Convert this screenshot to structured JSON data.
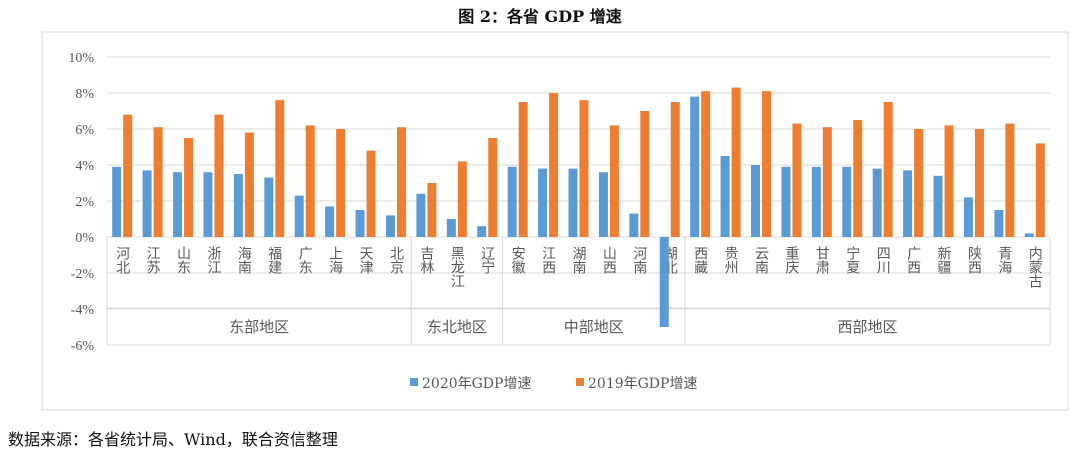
{
  "chart_data": {
    "type": "bar",
    "title": "图 2：各省 GDP 增速",
    "source": "数据来源：各省统计局、Wind，联合资信整理",
    "ylim": [
      -6,
      10
    ],
    "yticks": [
      "-6%",
      "-4%",
      "-2%",
      "0%",
      "2%",
      "4%",
      "6%",
      "8%",
      "10%"
    ],
    "grid": true,
    "legend": "bottom",
    "groups": [
      {
        "name": "东部地区",
        "categories": [
          "河北",
          "江苏",
          "山东",
          "浙江",
          "海南",
          "福建",
          "广东",
          "上海",
          "天津",
          "北京"
        ]
      },
      {
        "name": "东北地区",
        "categories": [
          "吉林",
          "黑龙江",
          "辽宁"
        ]
      },
      {
        "name": "中部地区",
        "categories": [
          "安徽",
          "江西",
          "湖南",
          "山西",
          "河南",
          "湖北"
        ]
      },
      {
        "name": "西部地区",
        "categories": [
          "西藏",
          "贵州",
          "云南",
          "重庆",
          "甘肃",
          "宁夏",
          "四川",
          "广西",
          "新疆",
          "陕西",
          "青海",
          "内蒙古"
        ]
      }
    ],
    "series": [
      {
        "name": "2020年GDP增速",
        "color": "#5b9bd5",
        "values": [
          3.9,
          3.7,
          3.6,
          3.6,
          3.5,
          3.3,
          2.3,
          1.7,
          1.5,
          1.2,
          2.4,
          1.0,
          0.6,
          3.9,
          3.8,
          3.8,
          3.6,
          1.3,
          -5.0,
          7.8,
          4.5,
          4.0,
          3.9,
          3.9,
          3.9,
          3.8,
          3.7,
          3.4,
          2.2,
          1.5,
          0.2
        ]
      },
      {
        "name": "2019年GDP增速",
        "color": "#ed7d31",
        "values": [
          6.8,
          6.1,
          5.5,
          6.8,
          5.8,
          7.6,
          6.2,
          6.0,
          4.8,
          6.1,
          3.0,
          4.2,
          5.5,
          7.5,
          8.0,
          7.6,
          6.2,
          7.0,
          7.5,
          8.1,
          8.3,
          8.1,
          6.3,
          6.1,
          6.5,
          7.5,
          6.0,
          6.2,
          6.0,
          6.3,
          5.2
        ]
      }
    ]
  }
}
